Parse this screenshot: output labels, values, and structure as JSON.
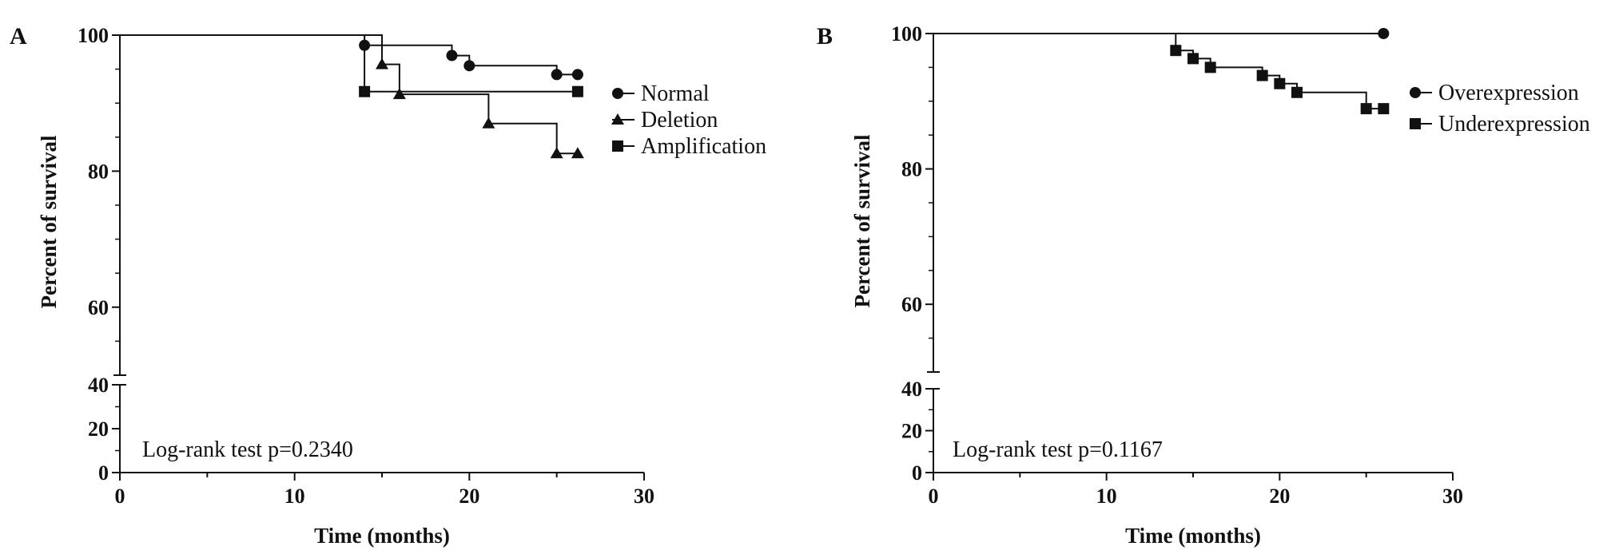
{
  "chart_data": [
    {
      "type": "line",
      "panel_label": "A",
      "xlabel": "Time (months)",
      "ylabel": "Percent of survival",
      "xlim": [
        0,
        30
      ],
      "ylim": [
        0,
        100
      ],
      "axis_break": [
        40,
        50
      ],
      "x_ticks": [
        0,
        10,
        20,
        30
      ],
      "y_ticks": [
        0,
        20,
        40,
        60,
        80,
        100
      ],
      "legend_position": "right",
      "annotation": "Log-rank test   p=0.2340",
      "series": [
        {
          "name": "Normal",
          "marker": "circle",
          "steps": [
            [
              0,
              100
            ],
            [
              14,
              100
            ],
            [
              14,
              98.5
            ],
            [
              19,
              98.5
            ],
            [
              19,
              97
            ],
            [
              20,
              97
            ],
            [
              20,
              95.5
            ],
            [
              25,
              95.5
            ],
            [
              25,
              94.2
            ],
            [
              26.2,
              94.2
            ]
          ],
          "censored": [
            [
              14,
              98.5
            ],
            [
              19,
              97
            ],
            [
              20,
              95.5
            ],
            [
              25,
              94.2
            ],
            [
              26.2,
              94.2
            ]
          ]
        },
        {
          "name": "Deletion",
          "marker": "triangle",
          "steps": [
            [
              0,
              100
            ],
            [
              15,
              100
            ],
            [
              15,
              95.7
            ],
            [
              16,
              95.7
            ],
            [
              16,
              91.3
            ],
            [
              21.1,
              91.3
            ],
            [
              21.1,
              87
            ],
            [
              25,
              87
            ],
            [
              25,
              82.6
            ],
            [
              26.2,
              82.6
            ]
          ],
          "censored": [
            [
              15,
              95.7
            ],
            [
              16,
              91.3
            ],
            [
              21.1,
              87
            ],
            [
              25,
              82.6
            ],
            [
              26.2,
              82.6
            ]
          ]
        },
        {
          "name": "Amplification",
          "marker": "square",
          "steps": [
            [
              0,
              100
            ],
            [
              14,
              100
            ],
            [
              14,
              91.7
            ],
            [
              26.2,
              91.7
            ]
          ],
          "censored": [
            [
              14,
              91.7
            ],
            [
              26.2,
              91.7
            ]
          ]
        }
      ]
    },
    {
      "type": "line",
      "panel_label": "B",
      "xlabel": "Time (months)",
      "ylabel": "Percent of survival",
      "xlim": [
        0,
        30
      ],
      "ylim": [
        0,
        100
      ],
      "axis_break": [
        40,
        50
      ],
      "x_ticks": [
        0,
        10,
        20,
        30
      ],
      "y_ticks": [
        0,
        20,
        40,
        60,
        80,
        100
      ],
      "legend_position": "right",
      "annotation": "Log-rank test   p=0.1167",
      "series": [
        {
          "name": "Overexpression",
          "marker": "circle",
          "steps": [
            [
              0,
              100
            ],
            [
              26,
              100
            ]
          ],
          "censored": [
            [
              26,
              100
            ]
          ]
        },
        {
          "name": "Underexpression",
          "marker": "square",
          "steps": [
            [
              0,
              100
            ],
            [
              14,
              100
            ],
            [
              14,
              97.5
            ],
            [
              15,
              97.5
            ],
            [
              15,
              96.3
            ],
            [
              16,
              96.3
            ],
            [
              16,
              95
            ],
            [
              19,
              95
            ],
            [
              19,
              93.8
            ],
            [
              20,
              93.8
            ],
            [
              20,
              92.6
            ],
            [
              21,
              92.6
            ],
            [
              21,
              91.3
            ],
            [
              25,
              91.3
            ],
            [
              25,
              88.9
            ],
            [
              26,
              88.9
            ]
          ],
          "censored": [
            [
              14,
              97.5
            ],
            [
              15,
              96.3
            ],
            [
              16,
              95
            ],
            [
              19,
              93.8
            ],
            [
              20,
              92.6
            ],
            [
              21,
              91.3
            ],
            [
              25,
              88.9
            ],
            [
              26,
              88.9
            ]
          ]
        }
      ]
    }
  ]
}
